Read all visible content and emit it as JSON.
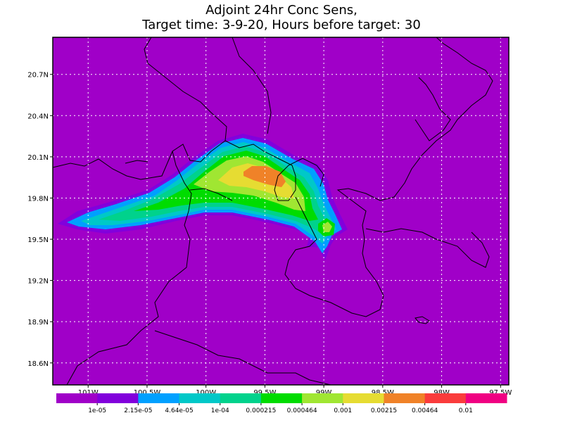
{
  "chart_data": {
    "type": "contour",
    "title": "Adjoint 24hr Conc Sens,",
    "subtitle": "Target time: 3-9-20, Hours before target: 30",
    "background_color": "#a000c8",
    "xlim": [
      -101.3,
      -97.43
    ],
    "ylim": [
      18.44,
      20.97
    ],
    "xticks": [
      {
        "value": -101,
        "label": "101W"
      },
      {
        "value": -100.5,
        "label": "100.5W"
      },
      {
        "value": -100,
        "label": "100W"
      },
      {
        "value": -99.5,
        "label": "99.5W"
      },
      {
        "value": -99,
        "label": "99W"
      },
      {
        "value": -98.5,
        "label": "98.5W"
      },
      {
        "value": -98,
        "label": "98W"
      },
      {
        "value": -97.5,
        "label": "97.5W"
      }
    ],
    "yticks": [
      {
        "value": 18.6,
        "label": "18.6N"
      },
      {
        "value": 18.9,
        "label": "18.9N"
      },
      {
        "value": 19.2,
        "label": "19.2N"
      },
      {
        "value": 19.5,
        "label": "19.5N"
      },
      {
        "value": 19.8,
        "label": "19.8N"
      },
      {
        "value": 20.1,
        "label": "20.1N"
      },
      {
        "value": 20.4,
        "label": "20.4N"
      },
      {
        "value": 20.7,
        "label": "20.7N"
      }
    ],
    "grid": true,
    "levels": [
      {
        "value": 1e-05,
        "label": "1e-05"
      },
      {
        "value": 2.15e-05,
        "label": "2.15e-05"
      },
      {
        "value": 4.64e-05,
        "label": "4.64e-05"
      },
      {
        "value": 0.0001,
        "label": "1e-04"
      },
      0.000215,
      0.000464,
      0.001,
      0.00215,
      0.00464,
      0.01
    ],
    "colors": [
      "#a000c8",
      "#8200dc",
      "#00a0ff",
      "#00c8c8",
      "#00d28c",
      "#00dc00",
      "#a0e632",
      "#e6dc32",
      "#f08228",
      "#fa3c3c",
      "#f00082"
    ]
  }
}
